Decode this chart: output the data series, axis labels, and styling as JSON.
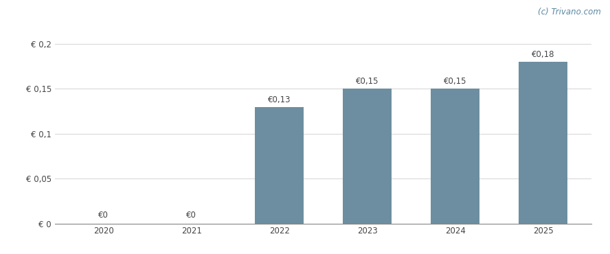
{
  "categories": [
    "2020",
    "2021",
    "2022",
    "2023",
    "2024",
    "2025"
  ],
  "values": [
    0,
    0,
    0.13,
    0.15,
    0.15,
    0.18
  ],
  "bar_color": "#6d8ea0",
  "background_color": "#ffffff",
  "yticks": [
    0,
    0.05,
    0.1,
    0.15,
    0.2
  ],
  "ytick_labels": [
    "€ 0",
    "€ 0,05",
    "€ 0,1",
    "€ 0,15",
    "€ 0,2"
  ],
  "ylim": [
    0,
    0.215
  ],
  "bar_labels": [
    "€0",
    "€0",
    "€0,13",
    "€0,15",
    "€0,15",
    "€0,18"
  ],
  "watermark": "(c) Trivano.com",
  "grid_color": "#d9d9d9",
  "label_color": "#444444",
  "watermark_color": "#5b87a0"
}
